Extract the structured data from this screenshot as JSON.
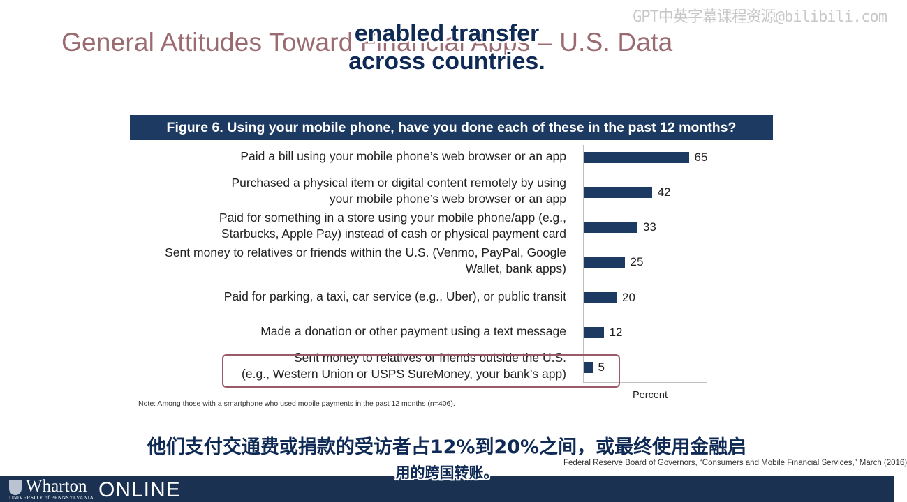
{
  "slide_title": "General Attitudes Toward Financial Apps – U.S. Data",
  "subtitle_en": [
    "enabled transfer",
    "across countries."
  ],
  "watermark": "GPT中英字幕课程资源@bilibili.com",
  "figure_header": "Figure 6. Using your mobile phone, have you done each of these in the past 12 months?",
  "chart_data": {
    "type": "bar",
    "orientation": "horizontal",
    "title": "Figure 6. Using your mobile phone, have you done each of these in the past 12 months?",
    "xlabel": "Percent",
    "ylabel": "",
    "xlim": [
      0,
      100
    ],
    "categories": [
      [
        "Paid a bill using your mobile phone’s web browser or an app"
      ],
      [
        "Purchased a physical item or digital content remotely by using",
        "your mobile phone’s web browser or an app"
      ],
      [
        "Paid for something in a store using your mobile phone/app (e.g.,",
        "Starbucks, Apple Pay) instead of cash or physical payment card"
      ],
      [
        "Sent money to relatives or friends within the U.S. (Venmo, PayPal, Google",
        "Wallet, bank apps)"
      ],
      [
        "Paid for parking, a taxi, car service (e.g., Uber), or public transit"
      ],
      [
        "Made a donation or other payment using a text message"
      ],
      [
        "Sent money to relatives or friends outside the U.S.",
        "(e.g., Western Union or USPS SureMoney, your bank’s app)"
      ]
    ],
    "values": [
      65,
      42,
      33,
      25,
      20,
      12,
      5
    ],
    "highlighted_category_index": 6,
    "bar_color": "#1d3a62",
    "highlight_color": "#9c5967",
    "grid": false,
    "legend": "none"
  },
  "note": "Note: Among those with a smartphone who used mobile payments in the past 12 months (n=406).",
  "source": "Federal Reserve Board of Governors, “Consumers and Mobile Financial Services,” March (2016)",
  "subtitle_zh": [
    "他们支付交通费或捐款的受访者占12%到20%之间，或最终使用金融启",
    "用的跨国转账。"
  ],
  "footer": {
    "logo_name": "Wharton",
    "logo_sub": "UNIVERSITY of PENNSYLVANIA",
    "brand": "ONLINE",
    "logo_icon": "penn-shield-icon",
    "bar_color": "#1a3152"
  }
}
